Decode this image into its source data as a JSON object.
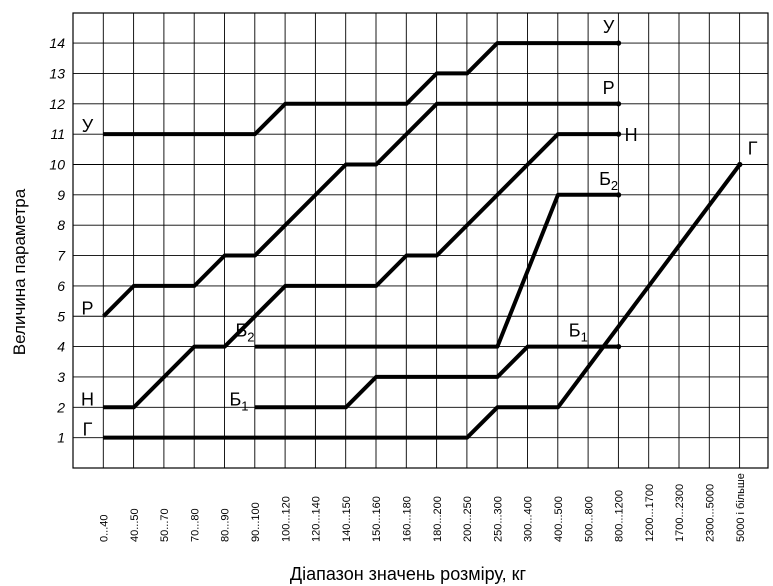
{
  "chart_data": {
    "type": "line",
    "xlabel": "Діапазон значень розміру, кг",
    "ylabel": "Величина параметра",
    "categories": [
      "0...40",
      "40...50",
      "50...70",
      "70...80",
      "80...90",
      "90...100",
      "100...120",
      "120...140",
      "140...150",
      "150...160",
      "160...180",
      "180...200",
      "200...250",
      "250...300",
      "300...400",
      "400...500",
      "500...800",
      "800...1200",
      "1200...1700",
      "1700...2300",
      "2300...5000",
      "5000 і більше"
    ],
    "ylim": [
      0,
      15
    ],
    "yticks": [
      1,
      2,
      3,
      4,
      5,
      6,
      7,
      8,
      9,
      10,
      11,
      12,
      13,
      14
    ],
    "grid": true,
    "series": [
      {
        "name": "Г",
        "points": [
          [
            0,
            1
          ],
          [
            12,
            1
          ],
          [
            13,
            2
          ],
          [
            15,
            2
          ],
          [
            21,
            10
          ]
        ],
        "labels": [
          {
            "text": "Г",
            "at": [
              0,
              1
            ],
            "side": "left"
          },
          {
            "text": "Г",
            "at": [
              21,
              10
            ],
            "side": "top-right"
          }
        ]
      },
      {
        "name": "Н",
        "points": [
          [
            0,
            2
          ],
          [
            1,
            2
          ],
          [
            3,
            4
          ],
          [
            4,
            4
          ],
          [
            6,
            6
          ],
          [
            9,
            6
          ],
          [
            10,
            7
          ],
          [
            11,
            7
          ],
          [
            15,
            11
          ],
          [
            17,
            11
          ]
        ],
        "labels": [
          {
            "text": "Н",
            "at": [
              0,
              2
            ],
            "side": "left"
          },
          {
            "text": "Н",
            "at": [
              17,
              11
            ],
            "side": "right"
          }
        ]
      },
      {
        "name": "Р",
        "points": [
          [
            0,
            5
          ],
          [
            1,
            6
          ],
          [
            3,
            6
          ],
          [
            4,
            7
          ],
          [
            5,
            7
          ],
          [
            8,
            10
          ],
          [
            9,
            10
          ],
          [
            11,
            12
          ],
          [
            17,
            12
          ]
        ],
        "labels": [
          {
            "text": "Р",
            "at": [
              0,
              5
            ],
            "side": "left"
          },
          {
            "text": "Р",
            "at": [
              17,
              12
            ],
            "side": "top"
          }
        ]
      },
      {
        "name": "У",
        "points": [
          [
            0,
            11
          ],
          [
            5,
            11
          ],
          [
            6,
            12
          ],
          [
            10,
            12
          ],
          [
            11,
            13
          ],
          [
            12,
            13
          ],
          [
            13,
            14
          ],
          [
            17,
            14
          ]
        ],
        "labels": [
          {
            "text": "У",
            "at": [
              0,
              11
            ],
            "side": "left"
          },
          {
            "text": "У",
            "at": [
              17,
              14
            ],
            "side": "top"
          }
        ]
      },
      {
        "name": "Б1",
        "points": [
          [
            5,
            2
          ],
          [
            8,
            2
          ],
          [
            9,
            3
          ],
          [
            13,
            3
          ],
          [
            14,
            4
          ],
          [
            17,
            4
          ]
        ],
        "labels": [
          {
            "text": "Б",
            "sub": "1",
            "at": [
              5,
              2
            ],
            "side": "left"
          },
          {
            "text": "Б",
            "sub": "1",
            "at": [
              16,
              4
            ],
            "side": "top"
          }
        ]
      },
      {
        "name": "Б2",
        "points": [
          [
            5,
            4
          ],
          [
            13,
            4
          ],
          [
            15,
            9
          ],
          [
            17,
            9
          ]
        ],
        "labels": [
          {
            "text": "Б",
            "sub": "2",
            "at": [
              5,
              4
            ],
            "side": "top"
          },
          {
            "text": "Б",
            "sub": "2",
            "at": [
              17,
              9
            ],
            "side": "top"
          }
        ]
      }
    ]
  }
}
